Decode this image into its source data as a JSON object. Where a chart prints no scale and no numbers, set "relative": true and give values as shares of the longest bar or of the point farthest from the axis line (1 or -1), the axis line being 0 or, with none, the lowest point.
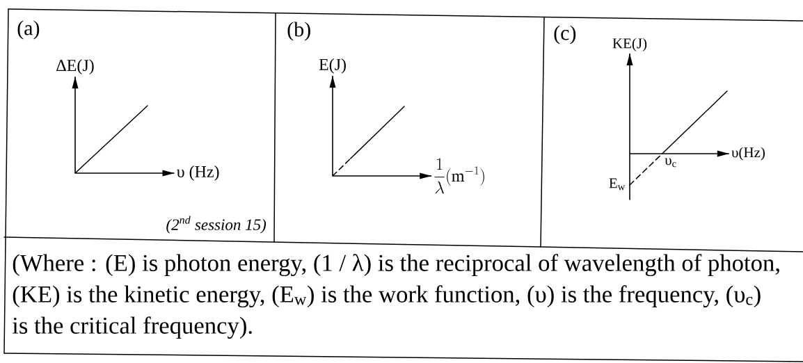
{
  "chart_data": [
    {
      "type": "line",
      "title": "(a)",
      "xlabel": "υ (Hz)",
      "ylabel": "ΔE(J)",
      "categories": [
        null,
        null
      ],
      "relative": true,
      "tick_labels": false,
      "marker": "none",
      "series": [
        {
          "color": "#000000",
          "line_style": "solid",
          "values": [
            0,
            1
          ]
        }
      ],
      "annotations": [
        "(2$^{nd}$ session 15)"
      ]
    },
    {
      "type": "line",
      "title": "(b)",
      "xlabel": "\\frac{1}{\\lambda}(\\mathrm{m}^{-1})",
      "ylabel": "E(J)",
      "categories": [
        null,
        null,
        null,
        null,
        null
      ],
      "relative": true,
      "tick_labels": false,
      "marker": "none",
      "series": [
        {
          "color": "#000000",
          "line_style": "dashed",
          "values": [
            0,
            0.25,
            null,
            null,
            null
          ]
        },
        {
          "color": "#000000",
          "line_style": "solid",
          "values": [
            null,
            0.25,
            0.5,
            0.75,
            1
          ]
        }
      ]
    },
    {
      "type": "line",
      "title": "(c)",
      "xlabel": "υ(Hz)",
      "ylabel": "KE(J)",
      "categories": [
        null,
        null,
        null,
        null
      ],
      "relative": true,
      "tick_labels": false,
      "marker": "none",
      "series": [
        {
          "color": "#000000",
          "line_style": "dashed",
          "values": [
            -0.5,
            0,
            null,
            null
          ]
        },
        {
          "color": "#000000",
          "line_style": "solid",
          "values": [
            null,
            0,
            0.5,
            1
          ]
        }
      ],
      "annotations": [
        "E$_{w}$",
        "υ$_{c}$"
      ]
    },
    {
      "type": "other",
      "annotations": [
        "(Where : (E) is photon energy, (1 / λ) is the reciprocal of wavelength of photon, (KE) is the kinetic energy, (E$_{w}$) is the work function, (υ) is the frequency, (υ$_{c}$) is the critical frequency)."
      ]
    }
  ]
}
